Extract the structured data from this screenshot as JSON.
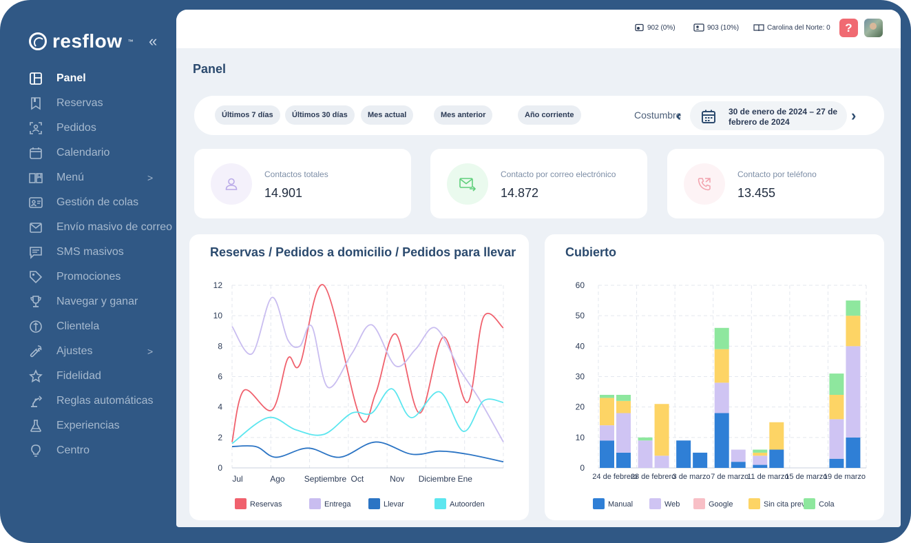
{
  "brand": {
    "name": "resflow",
    "tm": "™"
  },
  "sidebar": {
    "items": [
      {
        "label": "Panel",
        "icon": "layout-icon",
        "active": true
      },
      {
        "label": "Reservas",
        "icon": "bookmark-icon"
      },
      {
        "label": "Pedidos",
        "icon": "scan-icon"
      },
      {
        "label": "Calendario",
        "icon": "calendar-icon"
      },
      {
        "label": "Menú",
        "icon": "book-icon",
        "arrow": ">"
      },
      {
        "label": "Gestión de colas",
        "icon": "id-card-icon"
      },
      {
        "label": "Envío masivo de correo",
        "icon": "envelope-icon"
      },
      {
        "label": "SMS masivos",
        "icon": "message-icon"
      },
      {
        "label": "Promociones",
        "icon": "tag-icon"
      },
      {
        "label": "Navegar y ganar",
        "icon": "trophy-icon"
      },
      {
        "label": "Clientela",
        "icon": "clientela-icon"
      },
      {
        "label": "Ajustes",
        "icon": "wrench-icon",
        "arrow": ">"
      },
      {
        "label": "Fidelidad",
        "icon": "star-icon"
      },
      {
        "label": "Reglas automáticas",
        "icon": "robot-arm-icon"
      },
      {
        "label": "Experiencias",
        "icon": "flask-icon"
      },
      {
        "label": "Centro",
        "icon": "lightbulb-icon"
      }
    ]
  },
  "topbar": {
    "stat1": "902 (0%)",
    "stat2": "903 (10%)",
    "stat3": "Carolina del Norte: 0",
    "help": "?"
  },
  "page": {
    "title": "Panel"
  },
  "filters": {
    "chips": [
      "Últimos 7 días",
      "Últimos 30 días",
      "Mes actual",
      "Mes anterior",
      "Año corriente"
    ],
    "custom": "Costumbre",
    "date_range": "30 de enero de 2024 – 27 de febrero de 2024"
  },
  "stats": [
    {
      "label": "Contactos totales",
      "value": "14.901",
      "color": "#e9e4f7"
    },
    {
      "label": "Contacto por correo electrónico",
      "value": "14.872",
      "color": "#e3f7e8"
    },
    {
      "label": "Contacto por teléfono",
      "value": "13.455",
      "color": "#fbeef0"
    }
  ],
  "colors": {
    "sidebar": "#305885",
    "main_bg": "#edf1f6",
    "reservas": "#f0616d",
    "entrega": "#c9bdf0",
    "llevar": "#2b74c4",
    "autoorden": "#5ce6ef",
    "manual": "#2f7fd6",
    "web": "#cfc4f3",
    "google": "#f8bfc6",
    "sincita": "#fdd465",
    "cola": "#8ee79e"
  },
  "chart_data": [
    {
      "type": "line",
      "title": "Reservas / Pedidos a domicilio / Pedidos para llevar",
      "categories": [
        "Jul",
        "Ago",
        "Septiembre",
        "Oct",
        "Nov",
        "Diciembre",
        "Ene"
      ],
      "ylim": [
        0,
        12
      ],
      "yticks": [
        0,
        2,
        4,
        6,
        8,
        10,
        12
      ],
      "grid": true,
      "legend_position": "bottom",
      "series": [
        {
          "name": "Reservas",
          "x": [
            0,
            0.3,
            1,
            1.4,
            1.7,
            2.3,
            3.2,
            3.6,
            4.1,
            4.7,
            5.3,
            5.9,
            6.3,
            6.8
          ],
          "values": [
            1.7,
            5.1,
            3.8,
            7.2,
            6.8,
            12,
            3.4,
            4.9,
            8.8,
            3.6,
            8.6,
            4.3,
            9.9,
            9.2
          ]
        },
        {
          "name": "Entrega",
          "x": [
            0,
            0.5,
            1,
            1.4,
            1.7,
            2,
            2.4,
            3,
            3.5,
            4.1,
            4.6,
            5.1,
            5.7,
            6.2,
            6.8
          ],
          "values": [
            9.3,
            7.5,
            11.2,
            8.4,
            8.0,
            9.3,
            5.3,
            7.5,
            9.4,
            6.7,
            7.8,
            9.2,
            6.5,
            4.5,
            1.7
          ]
        },
        {
          "name": "Llevar",
          "x": [
            0,
            0.6,
            1.1,
            1.9,
            2.7,
            3.6,
            4.5,
            5.2,
            5.9,
            6.8
          ],
          "values": [
            1.4,
            1.4,
            0.7,
            1.3,
            0.7,
            1.7,
            0.9,
            1.1,
            0.9,
            0.4
          ]
        },
        {
          "name": "Autoorden",
          "x": [
            0,
            0.9,
            1.6,
            2.3,
            3.0,
            3.5,
            4.0,
            4.5,
            5.2,
            5.8,
            6.3,
            6.8
          ],
          "values": [
            1.6,
            3.3,
            2.5,
            2.2,
            3.6,
            3.6,
            5.2,
            3.3,
            5.0,
            2.4,
            4.4,
            4.3
          ]
        }
      ]
    },
    {
      "type": "bar",
      "stacked": true,
      "title": "Cubierto",
      "xticks": [
        "24 de febrero",
        "28 de febrero",
        "3 de marzo",
        "7 de marzo",
        "11 de marzo",
        "15 de marzo",
        "19 de marzo"
      ],
      "ylim": [
        0,
        60
      ],
      "yticks": [
        0,
        10,
        20,
        30,
        40,
        50,
        60
      ],
      "grid": true,
      "legend_position": "bottom",
      "series": [
        {
          "name": "Manual",
          "values": [
            9,
            5,
            0,
            0,
            9,
            5,
            18,
            2,
            1,
            6,
            0,
            0,
            3,
            10
          ]
        },
        {
          "name": "Web",
          "values": [
            5,
            13,
            9,
            4,
            0,
            0,
            10,
            4,
            3,
            0,
            0,
            0,
            13,
            30
          ]
        },
        {
          "name": "Google",
          "values": [
            0,
            0,
            0,
            0,
            0,
            0,
            0,
            0,
            0,
            0,
            0,
            0,
            0,
            0
          ]
        },
        {
          "name": "Sin cita previa",
          "values": [
            9,
            4,
            0,
            17,
            0,
            0,
            11,
            0,
            1,
            9,
            0,
            0,
            8,
            10
          ]
        },
        {
          "name": "Cola",
          "values": [
            1,
            2,
            1,
            0,
            0,
            0,
            7,
            0,
            1,
            0,
            0,
            0,
            7,
            5
          ]
        }
      ]
    }
  ]
}
